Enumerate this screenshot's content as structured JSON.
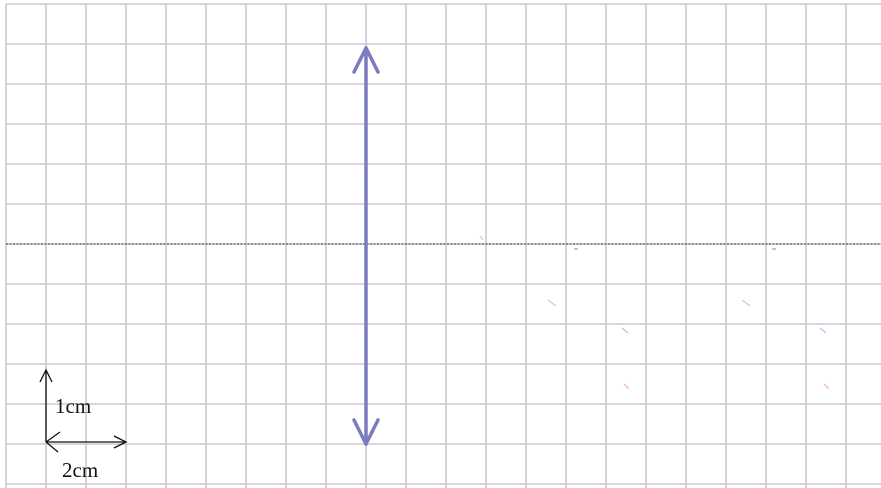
{
  "scale": {
    "vertical_label": "1cm",
    "horizontal_label": "2cm"
  },
  "lens": {
    "type": "convex",
    "color": "#7b7bc0"
  },
  "colors": {
    "grid": "#cfc6d4",
    "principal_axis": "#5a5a5a",
    "scale_bar": "#111111"
  }
}
